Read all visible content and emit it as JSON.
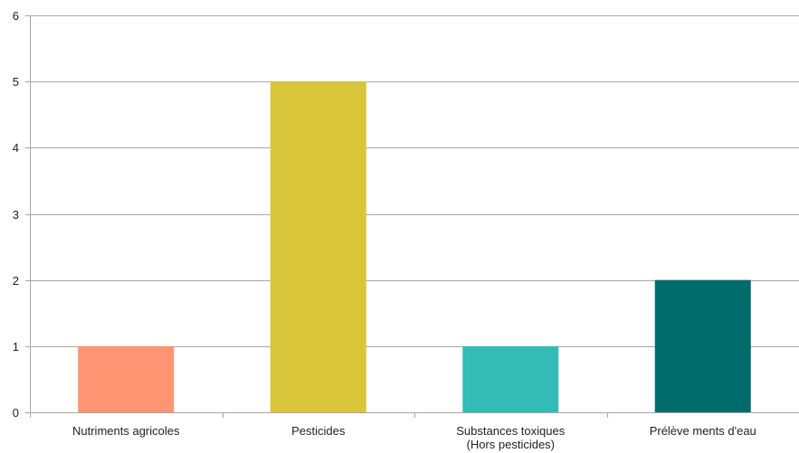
{
  "chart_data": {
    "type": "bar",
    "title": "",
    "xlabel": "",
    "ylabel": "",
    "categories": [
      [
        "Nutriments agricoles"
      ],
      [
        "Pesticides"
      ],
      [
        "Substances toxiques",
        "(Hors pesticides)"
      ],
      [
        "Prélève ments d'eau"
      ]
    ],
    "values": [
      1,
      5,
      1,
      2
    ],
    "colors": [
      "#FF9473",
      "#D9C63A",
      "#33BBB6",
      "#006B6B"
    ],
    "ylim": [
      0,
      6
    ],
    "yticks": [
      0,
      1,
      2,
      3,
      4,
      5,
      6
    ],
    "grid": true,
    "legend": "none"
  }
}
